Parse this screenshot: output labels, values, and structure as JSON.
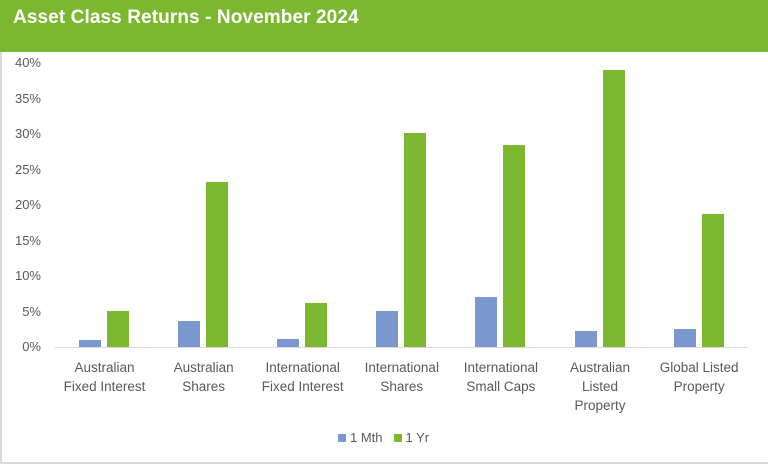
{
  "header": {
    "title": "Asset Class Returns - November 2024",
    "background": "#7cb82f"
  },
  "y_axis": {
    "ticks": [
      "40%",
      "35%",
      "30%",
      "25%",
      "20%",
      "15%",
      "10%",
      "5%",
      "0%"
    ]
  },
  "x_axis": {
    "labels": [
      [
        "Australian",
        "Fixed Interest"
      ],
      [
        "Australian",
        "Shares"
      ],
      [
        "International",
        "Fixed Interest"
      ],
      [
        "International",
        "Shares"
      ],
      [
        "International",
        "Small Caps"
      ],
      [
        "Australian",
        "Listed",
        "Property"
      ],
      [
        "Global Listed",
        "Property"
      ]
    ]
  },
  "legend": {
    "items": [
      {
        "label": "1 Mth",
        "color": "#7a97cf"
      },
      {
        "label": "1 Yr",
        "color": "#7cb82f"
      }
    ]
  },
  "chart_data": {
    "type": "bar",
    "title": "Asset Class Returns - November 2024",
    "categories": [
      "Australian Fixed Interest",
      "Australian Shares",
      "International Fixed Interest",
      "International Shares",
      "International Small Caps",
      "Australian Listed Property",
      "Global Listed Property"
    ],
    "series": [
      {
        "name": "1 Mth",
        "color": "#7a97cf",
        "values": [
          1.0,
          3.7,
          1.1,
          5.1,
          7.1,
          2.3,
          2.5
        ]
      },
      {
        "name": "1 Yr",
        "color": "#7cb82f",
        "values": [
          5.1,
          23.3,
          6.2,
          30.1,
          28.5,
          39.0,
          18.7
        ]
      }
    ],
    "xlabel": "",
    "ylabel": "",
    "ylim": [
      0,
      40
    ],
    "y_tick_step": 5,
    "y_format": "percent",
    "grid": false,
    "legend_position": "bottom"
  }
}
